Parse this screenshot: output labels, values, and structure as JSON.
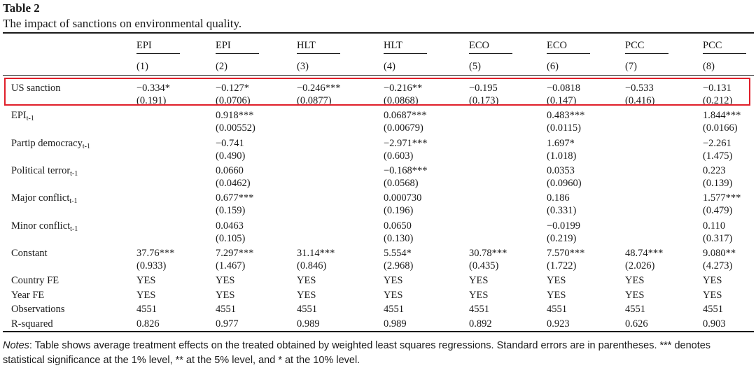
{
  "table_number": "Table 2",
  "caption": "The impact of sanctions on environmental quality.",
  "columns": [
    {
      "name": "EPI",
      "num": "(1)"
    },
    {
      "name": "EPI",
      "num": "(2)"
    },
    {
      "name": "HLT",
      "num": "(3)"
    },
    {
      "name": "HLT",
      "num": "(4)"
    },
    {
      "name": "ECO",
      "num": "(5)"
    },
    {
      "name": "ECO",
      "num": "(6)"
    },
    {
      "name": "PCC",
      "num": "(7)"
    },
    {
      "name": "PCC",
      "num": "(8)"
    }
  ],
  "rows": [
    {
      "label": "US sanction",
      "sub": "",
      "coef": [
        "−0.334*",
        "−0.127*",
        "−0.246***",
        "−0.216**",
        "−0.195",
        "−0.0818",
        "−0.533",
        "−0.131"
      ],
      "se": [
        "(0.191)",
        "(0.0706)",
        "(0.0877)",
        "(0.0868)",
        "(0.173)",
        "(0.147)",
        "(0.416)",
        "(0.212)"
      ]
    },
    {
      "label": "EPI",
      "sub": "t-1",
      "coef": [
        "",
        "0.918***",
        "",
        "0.0687***",
        "",
        "0.483***",
        "",
        "1.844***"
      ],
      "se": [
        "",
        "(0.00552)",
        "",
        "(0.00679)",
        "",
        "(0.0115)",
        "",
        "(0.0166)"
      ]
    },
    {
      "label": "Partip democracy",
      "sub": "t-1",
      "coef": [
        "",
        "−0.741",
        "",
        "−2.971***",
        "",
        "1.697*",
        "",
        "−2.261"
      ],
      "se": [
        "",
        "(0.490)",
        "",
        "(0.603)",
        "",
        "(1.018)",
        "",
        "(1.475)"
      ]
    },
    {
      "label": "Political terror",
      "sub": "t-1",
      "coef": [
        "",
        "0.0660",
        "",
        "−0.168***",
        "",
        "0.0353",
        "",
        "0.223"
      ],
      "se": [
        "",
        "(0.0462)",
        "",
        "(0.0568)",
        "",
        "(0.0960)",
        "",
        "(0.139)"
      ]
    },
    {
      "label": "Major conflict",
      "sub": "t-1",
      "coef": [
        "",
        "0.677***",
        "",
        "0.000730",
        "",
        "0.186",
        "",
        "1.577***"
      ],
      "se": [
        "",
        "(0.159)",
        "",
        "(0.196)",
        "",
        "(0.331)",
        "",
        "(0.479)"
      ]
    },
    {
      "label": "Minor conflict",
      "sub": "t-1",
      "coef": [
        "",
        "0.0463",
        "",
        "0.0650",
        "",
        "−0.0199",
        "",
        "0.110"
      ],
      "se": [
        "",
        "(0.105)",
        "",
        "(0.130)",
        "",
        "(0.219)",
        "",
        "(0.317)"
      ]
    },
    {
      "label": "Constant",
      "sub": "",
      "coef": [
        "37.76***",
        "7.297***",
        "31.14***",
        "5.554*",
        "30.78***",
        "7.570***",
        "48.74***",
        "9.080**"
      ],
      "se": [
        "(0.933)",
        "(1.467)",
        "(0.846)",
        "(2.968)",
        "(0.435)",
        "(1.722)",
        "(2.026)",
        "(4.273)"
      ]
    }
  ],
  "footer_rows": [
    {
      "label": "Country FE",
      "values": [
        "YES",
        "YES",
        "YES",
        "YES",
        "YES",
        "YES",
        "YES",
        "YES"
      ]
    },
    {
      "label": "Year FE",
      "values": [
        "YES",
        "YES",
        "YES",
        "YES",
        "YES",
        "YES",
        "YES",
        "YES"
      ]
    },
    {
      "label": "Observations",
      "values": [
        "4551",
        "4551",
        "4551",
        "4551",
        "4551",
        "4551",
        "4551",
        "4551"
      ]
    },
    {
      "label": "R-squared",
      "values": [
        "0.826",
        "0.977",
        "0.989",
        "0.989",
        "0.892",
        "0.923",
        "0.626",
        "0.903"
      ]
    }
  ],
  "notes_label": "Notes",
  "notes_text": ": Table shows average treatment effects on the treated obtained by weighted least squares regressions. Standard errors are in parentheses. *** denotes statistical significance at the 1% level, ** at the 5% level, and * at the 10% level.",
  "highlight_color": "#e01f2a"
}
